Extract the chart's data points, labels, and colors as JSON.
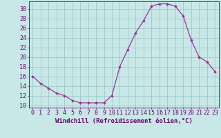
{
  "x": [
    0,
    1,
    2,
    3,
    4,
    5,
    6,
    7,
    8,
    9,
    10,
    11,
    12,
    13,
    14,
    15,
    16,
    17,
    18,
    19,
    20,
    21,
    22,
    23
  ],
  "y": [
    16,
    14.5,
    13.5,
    12.5,
    12,
    11,
    10.5,
    10.5,
    10.5,
    10.5,
    12,
    18,
    21.5,
    25,
    27.5,
    30.5,
    31,
    31,
    30.5,
    28.5,
    23.5,
    20,
    19,
    17
  ],
  "line_color": "#993399",
  "marker_color": "#993399",
  "bg_color": "#c8e8e8",
  "grid_color": "#a0c8c8",
  "xlabel": "Windchill (Refroidissement éolien,°C)",
  "xlim": [
    -0.5,
    23.5
  ],
  "ylim": [
    9.5,
    31.5
  ],
  "yticks": [
    10,
    12,
    14,
    16,
    18,
    20,
    22,
    24,
    26,
    28,
    30
  ],
  "xticks": [
    0,
    1,
    2,
    3,
    4,
    5,
    6,
    7,
    8,
    9,
    10,
    11,
    12,
    13,
    14,
    15,
    16,
    17,
    18,
    19,
    20,
    21,
    22,
    23
  ],
  "axis_color": "#660066",
  "font_size_xlabel": 6.5,
  "font_size_ticks": 6.0
}
